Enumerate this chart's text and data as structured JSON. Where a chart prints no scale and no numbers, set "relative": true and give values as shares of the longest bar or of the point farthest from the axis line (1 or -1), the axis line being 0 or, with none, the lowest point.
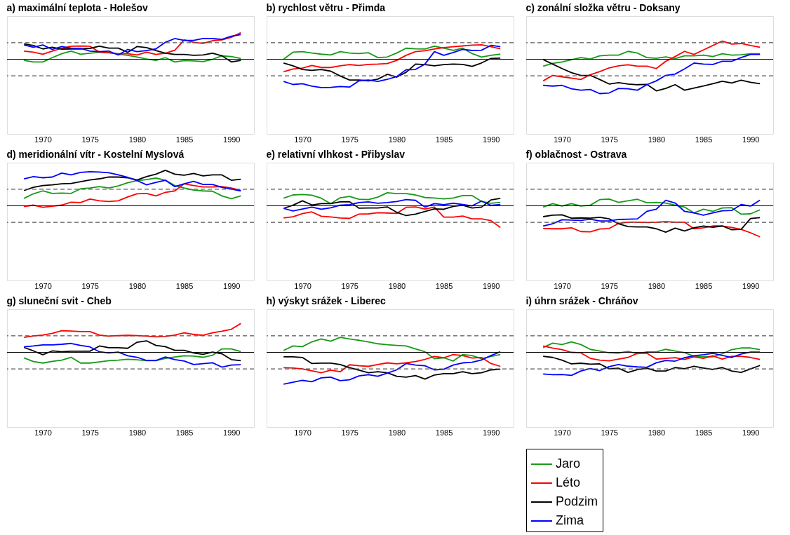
{
  "chart_data": [
    {
      "type": "line",
      "title": "a) maximální teplota - Holešov",
      "relative": true,
      "tick_labels": "x",
      "grid": false,
      "legend": false,
      "xlim": [
        1966.2,
        1992.4
      ],
      "xticks": [
        1970,
        1975,
        1980,
        1985,
        1990
      ],
      "x": [
        1968,
        1969,
        1970,
        1971,
        1972,
        1973,
        1974,
        1975,
        1976,
        1977,
        1978,
        1979,
        1980,
        1981,
        1982,
        1983,
        1984,
        1985,
        1986,
        1987,
        1988,
        1989,
        1990,
        1991
      ],
      "ref_lines": [
        {
          "axis": "y",
          "value": 0.625,
          "line_style": "dashed",
          "color": "#555555"
        },
        {
          "axis": "y",
          "value": -0.625,
          "line_style": "dashed",
          "color": "#555555"
        }
      ],
      "series": [
        {
          "color": "#189a18",
          "values": [
            -0.04,
            -0.1,
            -0.1,
            0.06,
            0.21,
            0.31,
            0.19,
            0.23,
            0.26,
            0.26,
            0.19,
            0.15,
            0.08,
            0.01,
            -0.04,
            0.06,
            -0.1,
            -0.05,
            -0.06,
            -0.09,
            0,
            0.13,
            0.1,
            0.03
          ]
        },
        {
          "color": "#ff0000",
          "values": [
            0.31,
            0.27,
            0.19,
            0.31,
            0.41,
            0.49,
            0.5,
            0.49,
            0.27,
            0.24,
            0.21,
            0.21,
            0.16,
            0.27,
            0.18,
            0.23,
            0.34,
            0.73,
            0.64,
            0.6,
            0.7,
            0.73,
            0.83,
            1
          ]
        },
        {
          "color": "#000000",
          "values": [
            0.58,
            0.52,
            0.39,
            0.45,
            0.38,
            0.39,
            0.39,
            0.41,
            0.49,
            0.42,
            0.42,
            0.26,
            0.48,
            0.44,
            0.33,
            0.23,
            0.18,
            0.18,
            0.15,
            0.16,
            0.23,
            0.13,
            -0.1,
            -0.04
          ]
        },
        {
          "color": "#0000ff",
          "values": [
            0.54,
            0.45,
            0.54,
            0.37,
            0.48,
            0.42,
            0.41,
            0.31,
            0.29,
            0.31,
            0.16,
            0.37,
            0.29,
            0.33,
            0.39,
            0.64,
            0.78,
            0.71,
            0.71,
            0.78,
            0.78,
            0.75,
            0.87,
            0.93
          ]
        }
      ]
    },
    {
      "type": "line",
      "title": "b) rychlost větru - Přimda",
      "relative": true,
      "tick_labels": "x",
      "grid": false,
      "legend": false,
      "xlim": [
        1966.2,
        1992.4
      ],
      "xticks": [
        1970,
        1975,
        1980,
        1985,
        1990
      ],
      "x": [
        1968,
        1969,
        1970,
        1971,
        1972,
        1973,
        1974,
        1975,
        1976,
        1977,
        1978,
        1979,
        1980,
        1981,
        1982,
        1983,
        1984,
        1985,
        1986,
        1987,
        1988,
        1989,
        1990,
        1991
      ],
      "ref_lines": [
        {
          "axis": "y",
          "value": 0.585,
          "line_style": "dashed",
          "color": "#555555"
        },
        {
          "axis": "y",
          "value": -0.585,
          "line_style": "dashed",
          "color": "#555555"
        }
      ],
      "series": [
        {
          "color": "#189a18",
          "values": [
            0,
            0.25,
            0.27,
            0.22,
            0.18,
            0.15,
            0.27,
            0.22,
            0.2,
            0.23,
            0.06,
            0.08,
            0.22,
            0.39,
            0.37,
            0.36,
            0.46,
            0.39,
            0.31,
            0.39,
            0.2,
            0.08,
            0.14,
            0.18
          ]
        },
        {
          "color": "#ff0000",
          "values": [
            -0.44,
            -0.34,
            -0.31,
            -0.22,
            -0.29,
            -0.29,
            -0.23,
            -0.19,
            -0.22,
            -0.18,
            -0.17,
            -0.15,
            -0.04,
            0.14,
            0.27,
            0.3,
            0.36,
            0.41,
            0.44,
            0.47,
            0.5,
            0.51,
            0.44,
            0.37
          ]
        },
        {
          "color": "#000000",
          "values": [
            -0.13,
            -0.23,
            -0.36,
            -0.39,
            -0.36,
            -0.42,
            -0.59,
            -0.73,
            -0.73,
            -0.76,
            -0.7,
            -0.53,
            -0.63,
            -0.46,
            -0.17,
            -0.19,
            -0.23,
            -0.19,
            -0.17,
            -0.18,
            -0.25,
            -0.13,
            0.03,
            0.04
          ]
        },
        {
          "color": "#0000ff",
          "values": [
            -0.78,
            -0.89,
            -0.86,
            -0.95,
            -1,
            -0.99,
            -0.96,
            -0.98,
            -0.76,
            -0.73,
            -0.78,
            -0.71,
            -0.61,
            -0.37,
            -0.36,
            -0.17,
            0.27,
            0.14,
            0.24,
            0.35,
            0.31,
            0.32,
            0.49,
            0.44
          ]
        }
      ]
    },
    {
      "type": "line",
      "title": "c) zonální složka větru - Doksany",
      "relative": true,
      "tick_labels": "x",
      "grid": false,
      "legend": false,
      "xlim": [
        1966.2,
        1992.4
      ],
      "xticks": [
        1970,
        1975,
        1980,
        1985,
        1990
      ],
      "x": [
        1968,
        1969,
        1970,
        1971,
        1972,
        1973,
        1974,
        1975,
        1976,
        1977,
        1978,
        1979,
        1980,
        1981,
        1982,
        1983,
        1984,
        1985,
        1986,
        1987,
        1988,
        1989,
        1990,
        1991
      ],
      "ref_lines": [
        {
          "axis": "y",
          "value": 0.483,
          "line_style": "dashed",
          "color": "#555555"
        },
        {
          "axis": "y",
          "value": -0.483,
          "line_style": "dashed",
          "color": "#555555"
        }
      ],
      "series": [
        {
          "color": "#189a18",
          "values": [
            -0.2,
            -0.12,
            -0.08,
            -0.01,
            0.05,
            0.01,
            0.1,
            0.12,
            0.12,
            0.23,
            0.18,
            0.05,
            0.03,
            0.07,
            0.02,
            0.1,
            0.1,
            0.12,
            0.08,
            0.16,
            0.12,
            0.13,
            0.16,
            0.16
          ]
        },
        {
          "color": "#ff0000",
          "values": [
            -0.63,
            -0.47,
            -0.51,
            -0.55,
            -0.59,
            -0.45,
            -0.36,
            -0.25,
            -0.19,
            -0.16,
            -0.2,
            -0.2,
            -0.27,
            -0.06,
            0.08,
            0.23,
            0.14,
            0.27,
            0.4,
            0.53,
            0.44,
            0.46,
            0.4,
            0.35
          ]
        },
        {
          "color": "#000000",
          "values": [
            -0.01,
            -0.14,
            -0.27,
            -0.39,
            -0.47,
            -0.47,
            -0.59,
            -0.72,
            -0.68,
            -0.72,
            -0.74,
            -0.73,
            -0.92,
            -0.85,
            -0.74,
            -0.9,
            -0.84,
            -0.78,
            -0.71,
            -0.64,
            -0.69,
            -0.61,
            -0.67,
            -0.71
          ]
        },
        {
          "color": "#0000ff",
          "values": [
            -0.76,
            -0.78,
            -0.76,
            -0.86,
            -0.9,
            -0.88,
            -1,
            -0.98,
            -0.85,
            -0.86,
            -0.9,
            -0.74,
            -0.63,
            -0.47,
            -0.43,
            -0.28,
            -0.11,
            -0.14,
            -0.15,
            -0.06,
            -0.06,
            0.05,
            0.14,
            0.14
          ]
        }
      ]
    },
    {
      "type": "line",
      "title": "d) meridionální vítr - Kostelní Myslová",
      "relative": true,
      "tick_labels": "x",
      "grid": false,
      "legend": false,
      "xlim": [
        1966.2,
        1992.4
      ],
      "xticks": [
        1970,
        1975,
        1980,
        1985,
        1990
      ],
      "x": [
        1968,
        1969,
        1970,
        1971,
        1972,
        1973,
        1974,
        1975,
        1976,
        1977,
        1978,
        1979,
        1980,
        1981,
        1982,
        1983,
        1984,
        1985,
        1986,
        1987,
        1988,
        1989,
        1990,
        1991
      ],
      "ref_lines": [
        {
          "axis": "y",
          "value": 0.467,
          "line_style": "dashed",
          "color": "#555555"
        },
        {
          "axis": "y",
          "value": -0.467,
          "line_style": "dashed",
          "color": "#555555"
        }
      ],
      "series": [
        {
          "color": "#189a18",
          "values": [
            0.21,
            0.34,
            0.42,
            0.35,
            0.36,
            0.35,
            0.48,
            0.5,
            0.54,
            0.5,
            0.56,
            0.65,
            0.71,
            0.74,
            0.78,
            0.72,
            0.57,
            0.5,
            0.44,
            0.42,
            0.41,
            0.28,
            0.2,
            0.28
          ]
        },
        {
          "color": "#ff0000",
          "values": [
            -0.02,
            0.02,
            -0.04,
            -0.01,
            0.02,
            0.1,
            0.09,
            0.19,
            0.14,
            0.12,
            0.14,
            0.25,
            0.34,
            0.35,
            0.28,
            0.38,
            0.42,
            0.62,
            0.57,
            0.53,
            0.53,
            0.54,
            0.5,
            0.43
          ]
        },
        {
          "color": "#000000",
          "values": [
            0.43,
            0.52,
            0.57,
            0.59,
            0.62,
            0.63,
            0.68,
            0.73,
            0.76,
            0.81,
            0.81,
            0.79,
            0.73,
            0.82,
            0.89,
            1,
            0.89,
            0.86,
            0.91,
            0.84,
            0.87,
            0.87,
            0.72,
            0.75
          ]
        },
        {
          "color": "#0000ff",
          "values": [
            0.76,
            0.82,
            0.79,
            0.81,
            0.92,
            0.87,
            0.94,
            0.96,
            0.95,
            0.93,
            0.87,
            0.8,
            0.71,
            0.59,
            0.66,
            0.72,
            0.54,
            0.62,
            0.69,
            0.6,
            0.6,
            0.52,
            0.47,
            0.42
          ]
        }
      ]
    },
    {
      "type": "line",
      "title": "e) relativní vlhkost - Přibyslav",
      "relative": true,
      "tick_labels": "x",
      "grid": false,
      "legend": false,
      "xlim": [
        1966.2,
        1992.4
      ],
      "xticks": [
        1970,
        1975,
        1980,
        1985,
        1990
      ],
      "x": [
        1968,
        1969,
        1970,
        1971,
        1972,
        1973,
        1974,
        1975,
        1976,
        1977,
        1978,
        1979,
        1980,
        1981,
        1982,
        1983,
        1984,
        1985,
        1986,
        1987,
        1988,
        1989,
        1990,
        1991
      ],
      "ref_lines": [
        {
          "axis": "y",
          "value": 0.763,
          "line_style": "dashed",
          "color": "#555555"
        },
        {
          "axis": "y",
          "value": -0.763,
          "line_style": "dashed",
          "color": "#555555"
        }
      ],
      "series": [
        {
          "color": "#189a18",
          "values": [
            0.35,
            0.5,
            0.52,
            0.49,
            0.35,
            0.1,
            0.37,
            0.43,
            0.3,
            0.29,
            0.4,
            0.6,
            0.56,
            0.56,
            0.5,
            0.38,
            0.36,
            0.32,
            0.36,
            0.47,
            0.47,
            0.2,
            0.12,
            0.16
          ]
        },
        {
          "color": "#ff0000",
          "values": [
            -0.56,
            -0.5,
            -0.36,
            -0.28,
            -0.48,
            -0.51,
            -0.56,
            -0.58,
            -0.38,
            -0.37,
            -0.32,
            -0.33,
            -0.35,
            -0.07,
            -0.05,
            -0.15,
            -0.06,
            -0.52,
            -0.52,
            -0.47,
            -0.6,
            -0.6,
            -0.68,
            -1
          ]
        },
        {
          "color": "#000000",
          "values": [
            -0.12,
            0.03,
            0.23,
            0.04,
            0.1,
            0.1,
            0.18,
            0.19,
            -0.11,
            -0.1,
            -0.1,
            -0.05,
            -0.3,
            -0.45,
            -0.38,
            -0.26,
            -0.14,
            -0.16,
            -0.03,
            0.03,
            -0.1,
            -0.06,
            0.27,
            0.34
          ]
        },
        {
          "color": "#0000ff",
          "values": [
            -0.12,
            -0.24,
            -0.15,
            -0.06,
            -0.16,
            -0.09,
            0.03,
            0.05,
            0.15,
            0.18,
            0.12,
            0.15,
            0.2,
            0.29,
            0.25,
            -0.06,
            0.1,
            0.05,
            0.12,
            0.06,
            0,
            0.22,
            0.02,
            0.06
          ]
        }
      ]
    },
    {
      "type": "line",
      "title": "f) oblačnost - Ostrava",
      "relative": true,
      "tick_labels": "x",
      "grid": false,
      "legend": false,
      "xlim": [
        1966.2,
        1992.4
      ],
      "xticks": [
        1970,
        1975,
        1980,
        1985,
        1990
      ],
      "x": [
        1968,
        1969,
        1970,
        1971,
        1972,
        1973,
        1974,
        1975,
        1976,
        1977,
        1978,
        1979,
        1980,
        1981,
        1982,
        1983,
        1984,
        1985,
        1986,
        1987,
        1988,
        1989,
        1990,
        1991
      ],
      "ref_lines": [
        {
          "axis": "y",
          "value": 0.535,
          "line_style": "dashed",
          "color": "#555555"
        },
        {
          "axis": "y",
          "value": -0.535,
          "line_style": "dashed",
          "color": "#555555"
        }
      ],
      "series": [
        {
          "color": "#189a18",
          "values": [
            -0.04,
            0.07,
            -0.01,
            0.07,
            -0.01,
            0.02,
            0.2,
            0.22,
            0.11,
            0.16,
            0.21,
            0.1,
            0.11,
            0.09,
            0.02,
            -0.04,
            -0.23,
            -0.11,
            -0.18,
            -0.07,
            -0.06,
            -0.27,
            -0.26,
            -0.13
          ]
        },
        {
          "color": "#ff0000",
          "values": [
            -0.73,
            -0.74,
            -0.74,
            -0.71,
            -0.83,
            -0.84,
            -0.75,
            -0.73,
            -0.57,
            -0.53,
            -0.53,
            -0.54,
            -0.53,
            -0.51,
            -0.53,
            -0.53,
            -0.74,
            -0.71,
            -0.65,
            -0.65,
            -0.7,
            -0.76,
            -0.87,
            -1
          ]
        },
        {
          "color": "#000000",
          "values": [
            -0.35,
            -0.3,
            -0.29,
            -0.4,
            -0.39,
            -0.4,
            -0.37,
            -0.42,
            -0.58,
            -0.67,
            -0.68,
            -0.68,
            -0.74,
            -0.85,
            -0.72,
            -0.81,
            -0.71,
            -0.65,
            -0.69,
            -0.65,
            -0.77,
            -0.76,
            -0.41,
            -0.38
          ]
        },
        {
          "color": "#0000ff",
          "values": [
            -0.65,
            -0.58,
            -0.45,
            -0.46,
            -0.47,
            -0.43,
            -0.49,
            -0.49,
            -0.44,
            -0.43,
            -0.42,
            -0.18,
            -0.11,
            0.18,
            0.09,
            -0.18,
            -0.23,
            -0.3,
            -0.23,
            -0.16,
            -0.15,
            0.04,
            -0.01,
            0.18
          ]
        }
      ]
    },
    {
      "type": "line",
      "title": "g) sluneční svit - Cheb",
      "relative": true,
      "tick_labels": "x",
      "grid": false,
      "legend": false,
      "xlim": [
        1966.2,
        1992.4
      ],
      "xticks": [
        1970,
        1975,
        1980,
        1985,
        1990
      ],
      "x": [
        1968,
        1969,
        1970,
        1971,
        1972,
        1973,
        1974,
        1975,
        1976,
        1977,
        1978,
        1979,
        1980,
        1981,
        1982,
        1983,
        1984,
        1985,
        1986,
        1987,
        1988,
        1989,
        1990,
        1991
      ],
      "ref_lines": [
        {
          "axis": "y",
          "value": 0.575,
          "line_style": "dashed",
          "color": "#555555"
        },
        {
          "axis": "y",
          "value": -0.575,
          "line_style": "dashed",
          "color": "#555555"
        }
      ],
      "series": [
        {
          "color": "#189a18",
          "values": [
            -0.19,
            -0.32,
            -0.37,
            -0.31,
            -0.27,
            -0.17,
            -0.37,
            -0.37,
            -0.33,
            -0.29,
            -0.27,
            -0.24,
            -0.26,
            -0.29,
            -0.29,
            -0.21,
            -0.16,
            -0.12,
            -0.13,
            -0.17,
            -0.1,
            0.12,
            0.12,
            0.03
          ]
        },
        {
          "color": "#ff0000",
          "values": [
            0.52,
            0.57,
            0.6,
            0.66,
            0.75,
            0.74,
            0.72,
            0.72,
            0.6,
            0.56,
            0.58,
            0.59,
            0.58,
            0.56,
            0.54,
            0.55,
            0.6,
            0.68,
            0.62,
            0.59,
            0.68,
            0.73,
            0.8,
            1
          ]
        },
        {
          "color": "#000000",
          "values": [
            0.17,
            0.05,
            -0.08,
            0.05,
            0.02,
            0.04,
            0.04,
            0.04,
            0.22,
            0.16,
            0.16,
            0.14,
            0.35,
            0.4,
            0.24,
            0.2,
            0.07,
            0.07,
            -0.02,
            -0.07,
            0.01,
            -0.05,
            -0.25,
            -0.29
          ]
        },
        {
          "color": "#0000ff",
          "values": [
            0.19,
            0.22,
            0.26,
            0.26,
            0.28,
            0.31,
            0.24,
            0.19,
            0.02,
            -0.02,
            0.01,
            -0.12,
            -0.17,
            -0.28,
            -0.28,
            -0.16,
            -0.25,
            -0.3,
            -0.42,
            -0.39,
            -0.36,
            -0.51,
            -0.44,
            -0.43
          ]
        }
      ]
    },
    {
      "type": "line",
      "title": "h) výskyt srážek - Liberec",
      "relative": true,
      "tick_labels": "x",
      "grid": false,
      "legend": false,
      "xlim": [
        1966.2,
        1992.4
      ],
      "xticks": [
        1970,
        1975,
        1980,
        1985,
        1990
      ],
      "x": [
        1968,
        1969,
        1970,
        1971,
        1972,
        1973,
        1974,
        1975,
        1976,
        1977,
        1978,
        1979,
        1980,
        1981,
        1982,
        1983,
        1984,
        1985,
        1986,
        1987,
        1988,
        1989,
        1990,
        1991
      ],
      "ref_lines": [
        {
          "axis": "y",
          "value": 0.521,
          "line_style": "dashed",
          "color": "#555555"
        },
        {
          "axis": "y",
          "value": -0.521,
          "line_style": "dashed",
          "color": "#555555"
        }
      ],
      "series": [
        {
          "color": "#189a18",
          "values": [
            0.06,
            0.2,
            0.18,
            0.33,
            0.42,
            0.35,
            0.47,
            0.42,
            0.38,
            0.33,
            0.27,
            0.24,
            0.22,
            0.2,
            0.11,
            0.02,
            -0.2,
            -0.17,
            -0.27,
            -0.07,
            -0.1,
            -0.2,
            -0.13,
            -0.07
          ]
        },
        {
          "color": "#ff0000",
          "values": [
            -0.48,
            -0.49,
            -0.52,
            -0.58,
            -0.64,
            -0.56,
            -0.61,
            -0.39,
            -0.42,
            -0.44,
            -0.38,
            -0.33,
            -0.36,
            -0.33,
            -0.29,
            -0.22,
            -0.13,
            -0.17,
            -0.07,
            -0.1,
            -0.18,
            -0.16,
            -0.35,
            -0.44
          ]
        },
        {
          "color": "#000000",
          "values": [
            -0.14,
            -0.14,
            -0.16,
            -0.35,
            -0.34,
            -0.34,
            -0.38,
            -0.48,
            -0.56,
            -0.64,
            -0.61,
            -0.64,
            -0.75,
            -0.78,
            -0.73,
            -0.84,
            -0.71,
            -0.67,
            -0.67,
            -0.61,
            -0.67,
            -0.64,
            -0.55,
            -0.53
          ]
        },
        {
          "color": "#0000ff",
          "values": [
            -1,
            -0.94,
            -0.88,
            -0.92,
            -0.8,
            -0.78,
            -0.89,
            -0.86,
            -0.74,
            -0.7,
            -0.75,
            -0.65,
            -0.55,
            -0.35,
            -0.4,
            -0.42,
            -0.55,
            -0.53,
            -0.4,
            -0.33,
            -0.31,
            -0.24,
            -0.1,
            0.02
          ]
        }
      ]
    },
    {
      "type": "line",
      "title": "i) úhrn srážek - Chráňov",
      "relative": true,
      "tick_labels": "x",
      "grid": false,
      "legend": "bottom left",
      "xlim": [
        1966.2,
        1992.4
      ],
      "xticks": [
        1970,
        1975,
        1980,
        1985,
        1990
      ],
      "x": [
        1968,
        1969,
        1970,
        1971,
        1972,
        1973,
        1974,
        1975,
        1976,
        1977,
        1978,
        1979,
        1980,
        1981,
        1982,
        1983,
        1984,
        1985,
        1986,
        1987,
        1988,
        1989,
        1990,
        1991
      ],
      "ref_lines": [
        {
          "axis": "y",
          "value": 0.719,
          "line_style": "dashed",
          "color": "#555555"
        },
        {
          "axis": "y",
          "value": -0.719,
          "line_style": "dashed",
          "color": "#555555"
        }
      ],
      "series": [
        {
          "name": "Jaro",
          "color": "#189a18",
          "values": [
            0.21,
            0.4,
            0.34,
            0.45,
            0.34,
            0.13,
            0.06,
            -0.02,
            -0.03,
            0.04,
            -0.06,
            0.02,
            0.02,
            0.13,
            0.06,
            -0.01,
            -0.17,
            -0.19,
            -0.19,
            -0.06,
            0.12,
            0.19,
            0.19,
            0.12
          ]
        },
        {
          "name": "Léto",
          "color": "#ff0000",
          "values": [
            0.28,
            0.19,
            0.12,
            0,
            -0.02,
            -0.26,
            -0.34,
            -0.37,
            -0.29,
            -0.22,
            -0.04,
            -0.04,
            -0.29,
            -0.26,
            -0.23,
            -0.31,
            -0.19,
            -0.26,
            -0.15,
            -0.29,
            -0.17,
            -0.17,
            -0.22,
            -0.31
          ]
        },
        {
          "name": "Podzim",
          "color": "#000000",
          "values": [
            -0.17,
            -0.22,
            -0.34,
            -0.5,
            -0.47,
            -0.51,
            -0.5,
            -0.71,
            -0.69,
            -0.87,
            -0.75,
            -0.69,
            -0.81,
            -0.81,
            -0.66,
            -0.71,
            -0.6,
            -0.68,
            -0.74,
            -0.66,
            -0.81,
            -0.87,
            -0.72,
            -0.57
          ]
        },
        {
          "name": "Zima",
          "color": "#0000ff",
          "values": [
            -0.94,
            -0.97,
            -0.96,
            -1,
            -0.81,
            -0.7,
            -0.79,
            -0.62,
            -0.53,
            -0.6,
            -0.63,
            -0.65,
            -0.45,
            -0.35,
            -0.38,
            -0.23,
            -0.15,
            -0.1,
            -0.04,
            -0.13,
            -0.22,
            -0.07,
            0.01,
            0.01
          ]
        }
      ]
    }
  ]
}
